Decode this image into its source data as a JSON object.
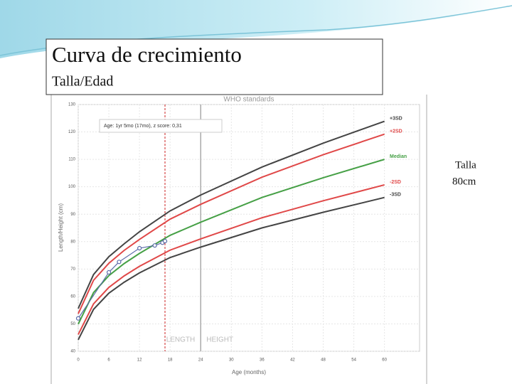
{
  "slide": {
    "title": "Curva de crecimiento",
    "subtitle": "Talla/Edad",
    "note": [
      "Talla",
      "80cm"
    ]
  },
  "chart_data": {
    "type": "line",
    "title": "WHO standards",
    "x_label": "Age (months)",
    "y_label": "Length/Height (cm)",
    "annotation": "Age: 1yr 5mo (17mo), z score: 0,31",
    "phase_labels": [
      "LENGTH",
      "HEIGHT"
    ],
    "x": [
      0,
      3,
      6,
      9,
      12,
      18,
      24,
      36,
      48,
      60
    ],
    "series": [
      {
        "name": "+3SD",
        "color": "#444444",
        "values": [
          55.6,
          68.0,
          74.5,
          79.2,
          83.6,
          91.2,
          97.0,
          107.2,
          115.9,
          123.9
        ]
      },
      {
        "name": "+2SD",
        "color": "#e04848",
        "values": [
          53.7,
          65.9,
          72.1,
          76.8,
          80.8,
          88.2,
          93.6,
          103.5,
          111.7,
          119.2
        ]
      },
      {
        "name": "Median",
        "color": "#46a046",
        "values": [
          49.9,
          61.4,
          67.6,
          72.0,
          75.7,
          82.3,
          87.1,
          96.1,
          103.3,
          110.0
        ]
      },
      {
        "name": "-2SD",
        "color": "#e04848",
        "values": [
          46.1,
          57.3,
          63.3,
          67.5,
          71.0,
          76.9,
          81.0,
          88.7,
          94.9,
          100.7
        ]
      },
      {
        "name": "-3SD",
        "color": "#444444",
        "values": [
          44.2,
          55.3,
          61.2,
          65.2,
          68.6,
          74.2,
          78.0,
          85.0,
          90.7,
          96.1
        ]
      }
    ],
    "measurements": {
      "color": "#5a6aa8",
      "x": [
        0,
        6,
        8,
        12,
        15,
        16.5,
        17
      ],
      "values": [
        52,
        68.8,
        72.6,
        77.6,
        78.6,
        79.6,
        80.2
      ]
    },
    "age_marker": {
      "x": 17,
      "color": "#cc2222"
    },
    "divider": {
      "x": 24,
      "color": "#aaaaaa"
    },
    "xlim": [
      0,
      62
    ],
    "xticks": [
      0,
      6,
      12,
      18,
      24,
      30,
      36,
      42,
      48,
      54,
      60
    ],
    "ylim": [
      40,
      130
    ],
    "yticks": [
      40,
      50,
      60,
      70,
      80,
      90,
      100,
      110,
      120,
      130
    ],
    "grid": true
  }
}
